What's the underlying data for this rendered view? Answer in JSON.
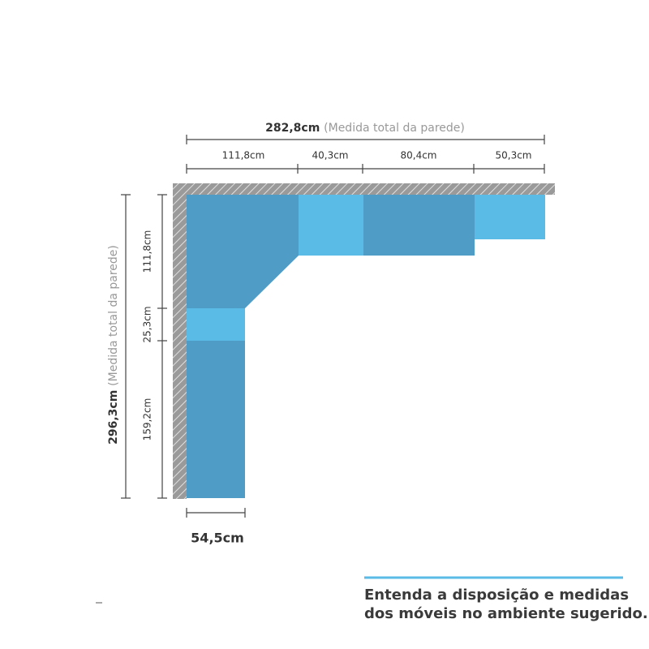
{
  "top": {
    "total": {
      "value": "282,8cm",
      "note": "(Medida total da parede)"
    },
    "segments": [
      "111,8cm",
      "40,3cm",
      "80,4cm",
      "50,3cm"
    ]
  },
  "left": {
    "total": {
      "value": "296,3cm",
      "note": "(Medida total da parede)"
    },
    "segments": [
      "111,8cm",
      "25,3cm",
      "159,2cm"
    ]
  },
  "depth": "54,5cm",
  "caption": [
    "Entenda a disposição e medidas",
    "dos móveis no ambiente sugerido."
  ]
}
